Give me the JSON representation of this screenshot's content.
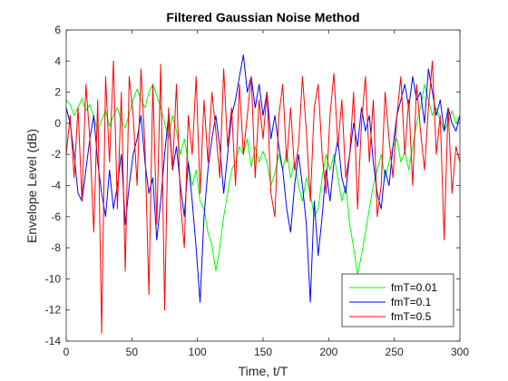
{
  "chart_data": {
    "type": "line",
    "title": "Filtered Gaussian Noise Method",
    "xlabel": "Time, t/T",
    "ylabel": "Envelope Level (dB)",
    "xlim": [
      0,
      300
    ],
    "ylim": [
      -14,
      6
    ],
    "xticks": [
      0,
      50,
      100,
      150,
      200,
      250,
      300
    ],
    "yticks": [
      -14,
      -12,
      -10,
      -8,
      -6,
      -4,
      -2,
      0,
      2,
      4,
      6
    ],
    "xtick_labels": [
      "0",
      "50",
      "100",
      "150",
      "200",
      "250",
      "300"
    ],
    "ytick_labels": [
      "-14",
      "-12",
      "-10",
      "-8",
      "-6",
      "-4",
      "-2",
      "0",
      "2",
      "4",
      "6"
    ],
    "grid": false,
    "legend_position": "bottom-right",
    "series": [
      {
        "name": "fmT=0.01",
        "color": "#00ff00",
        "x": [
          0,
          3,
          6,
          9,
          12,
          15,
          18,
          21,
          24,
          27,
          30,
          33,
          36,
          39,
          42,
          45,
          48,
          51,
          54,
          57,
          60,
          63,
          66,
          69,
          72,
          75,
          78,
          81,
          84,
          87,
          90,
          93,
          96,
          99,
          102,
          105,
          108,
          111,
          114,
          117,
          120,
          123,
          126,
          129,
          132,
          135,
          138,
          141,
          144,
          147,
          150,
          153,
          156,
          159,
          162,
          165,
          168,
          171,
          174,
          177,
          180,
          183,
          186,
          189,
          192,
          195,
          198,
          201,
          204,
          207,
          210,
          213,
          216,
          219,
          222,
          225,
          228,
          231,
          234,
          237,
          240,
          243,
          246,
          249,
          252,
          255,
          258,
          261,
          264,
          267,
          270,
          273,
          276,
          279,
          282,
          285,
          288,
          291,
          294,
          297,
          300
        ],
        "values": [
          1.5,
          1.2,
          0.5,
          1.0,
          1.6,
          0.8,
          1.2,
          0.4,
          -0.5,
          0.2,
          0.8,
          -0.2,
          0.5,
          1.0,
          0.2,
          -0.3,
          0.6,
          1.5,
          2.2,
          1.5,
          1.0,
          2.0,
          2.5,
          1.8,
          1.0,
          0.0,
          -1.0,
          0.5,
          -0.5,
          -2.0,
          -1.0,
          -2.5,
          -4.0,
          -3.0,
          -5.0,
          -5.5,
          -7.0,
          -7.8,
          -9.5,
          -8.0,
          -6.0,
          -4.5,
          -3.0,
          -2.5,
          -1.5,
          -2.0,
          -1.0,
          -2.8,
          -1.5,
          -2.5,
          -1.8,
          -2.5,
          -4.0,
          -3.2,
          -2.0,
          -3.0,
          -1.8,
          -3.5,
          -2.5,
          -4.0,
          -5.0,
          -3.5,
          -4.5,
          -6.0,
          -5.5,
          -3.5,
          -2.0,
          -3.0,
          -2.0,
          -3.5,
          -5.0,
          -4.0,
          -6.5,
          -8.0,
          -9.7,
          -8.5,
          -7.0,
          -5.5,
          -4.0,
          -3.0,
          -2.0,
          -3.5,
          -2.5,
          -1.5,
          -1.0,
          -2.5,
          -1.8,
          -3.0,
          -1.5,
          0.0,
          1.0,
          2.5,
          1.5,
          0.5,
          1.0,
          0.2,
          -0.5,
          0.0,
          0.8,
          0.0,
          0.5
        ]
      },
      {
        "name": "fmT=0.1",
        "color": "#0000ff",
        "x": [
          0,
          3,
          6,
          9,
          12,
          15,
          18,
          21,
          24,
          27,
          30,
          33,
          36,
          39,
          42,
          45,
          48,
          51,
          54,
          57,
          60,
          63,
          66,
          69,
          72,
          75,
          78,
          81,
          84,
          87,
          90,
          93,
          96,
          99,
          102,
          105,
          108,
          111,
          114,
          117,
          120,
          123,
          126,
          129,
          132,
          135,
          138,
          141,
          144,
          147,
          150,
          153,
          156,
          159,
          162,
          165,
          168,
          171,
          174,
          177,
          180,
          183,
          186,
          189,
          192,
          195,
          198,
          201,
          204,
          207,
          210,
          213,
          216,
          219,
          222,
          225,
          228,
          231,
          234,
          237,
          240,
          243,
          246,
          249,
          252,
          255,
          258,
          261,
          264,
          267,
          270,
          273,
          276,
          279,
          282,
          285,
          288,
          291,
          294,
          297,
          300
        ],
        "values": [
          1.0,
          0.0,
          -2.0,
          -4.5,
          -5.0,
          -3.0,
          -1.0,
          0.5,
          -2.5,
          -4.5,
          -6.0,
          -3.0,
          -5.5,
          -4.0,
          -2.0,
          -6.5,
          -4.0,
          -2.0,
          -1.0,
          0.5,
          -2.5,
          -4.5,
          -3.5,
          -7.5,
          -5.0,
          -2.0,
          0.5,
          -3.0,
          -1.5,
          -4.0,
          -6.0,
          -2.5,
          -5.0,
          -8.0,
          -11.5,
          -6.0,
          -3.0,
          -1.0,
          0.5,
          -1.5,
          -4.5,
          -2.0,
          0.5,
          1.5,
          3.0,
          4.4,
          2.0,
          3.0,
          1.0,
          2.5,
          0.5,
          2.0,
          -1.0,
          0.5,
          -1.5,
          -3.0,
          -5.5,
          -7.0,
          -4.0,
          -2.0,
          -4.0,
          -6.5,
          -11.5,
          -5.0,
          -8.5,
          -6.0,
          -3.0,
          -5.0,
          -2.5,
          -1.0,
          -3.5,
          -4.5,
          -2.0,
          0.0,
          -1.5,
          1.0,
          -0.5,
          0.5,
          -2.5,
          -4.5,
          -5.5,
          -3.0,
          -4.0,
          -1.5,
          0.5,
          1.5,
          2.5,
          1.0,
          3.0,
          1.5,
          2.0,
          0.0,
          3.5,
          2.0,
          0.5,
          1.5,
          -0.5,
          1.0,
          0.0,
          -0.5,
          0.5
        ]
      },
      {
        "name": "fmT=0.5",
        "color": "#ff0000",
        "x": [
          0,
          3,
          6,
          9,
          12,
          15,
          18,
          21,
          24,
          27,
          30,
          33,
          36,
          39,
          42,
          45,
          48,
          51,
          54,
          57,
          60,
          63,
          66,
          69,
          72,
          75,
          78,
          81,
          84,
          87,
          90,
          93,
          96,
          99,
          102,
          105,
          108,
          111,
          114,
          117,
          120,
          123,
          126,
          129,
          132,
          135,
          138,
          141,
          144,
          147,
          150,
          153,
          156,
          159,
          162,
          165,
          168,
          171,
          174,
          177,
          180,
          183,
          186,
          189,
          192,
          195,
          198,
          201,
          204,
          207,
          210,
          213,
          216,
          219,
          222,
          225,
          228,
          231,
          234,
          237,
          240,
          243,
          246,
          249,
          252,
          255,
          258,
          261,
          264,
          267,
          270,
          273,
          276,
          279,
          282,
          285,
          288,
          291,
          294,
          297,
          300
        ],
        "values": [
          -2.0,
          0.5,
          -3.5,
          1.0,
          -5.0,
          2.5,
          -1.0,
          -7.0,
          1.5,
          -13.5,
          3.0,
          -2.5,
          4.0,
          -5.5,
          2.0,
          -9.5,
          3.0,
          0.5,
          -4.0,
          3.5,
          -1.5,
          -11.0,
          2.5,
          -6.5,
          3.8,
          -12.0,
          1.0,
          -3.0,
          2.5,
          -5.0,
          -8.0,
          0.5,
          -2.0,
          3.0,
          -4.5,
          1.5,
          -2.5,
          2.0,
          -0.5,
          -3.5,
          3.5,
          -1.5,
          1.0,
          -4.0,
          2.5,
          -2.0,
          0.5,
          3.0,
          -3.5,
          1.5,
          -1.0,
          2.0,
          -4.5,
          -6.0,
          0.5,
          2.5,
          -2.5,
          1.0,
          -3.0,
          -1.5,
          3.0,
          -0.5,
          -5.0,
          1.0,
          2.5,
          -2.0,
          -4.5,
          0.5,
          3.2,
          -1.5,
          1.5,
          -3.5,
          -2.0,
          2.0,
          -5.5,
          0.0,
          3.0,
          -2.5,
          1.5,
          -6.0,
          -4.0,
          2.0,
          -1.0,
          -3.5,
          0.5,
          3.0,
          -2.0,
          1.5,
          -4.0,
          2.5,
          -0.5,
          -3.0,
          1.0,
          4.0,
          -2.0,
          0.5,
          -7.5,
          1.0,
          -4.5,
          -1.5,
          -2.5
        ]
      }
    ]
  }
}
